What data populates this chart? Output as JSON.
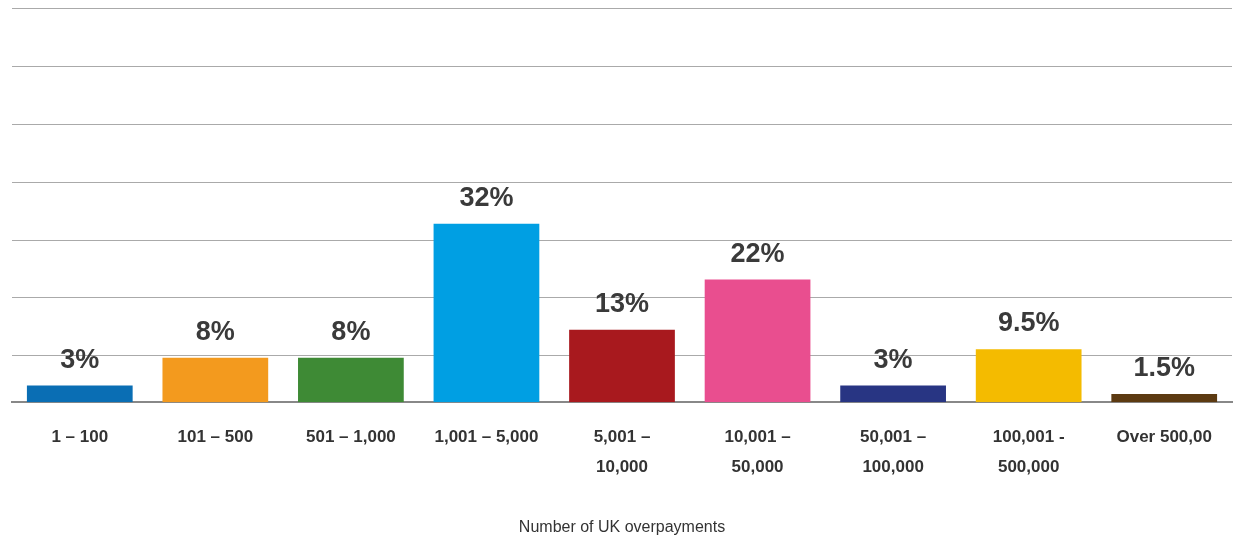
{
  "chart_data": {
    "type": "bar",
    "xlabel": "Number of UK overpayments",
    "categories": [
      "1 – 100",
      "101 – 500",
      "501 – 1,000",
      "1,001 – 5,000",
      "5,001 –\n10,000",
      "10,001 –\n50,000",
      "50,001 –\n100,000",
      "100,001 -\n500,000",
      "Over 500,00"
    ],
    "values": [
      3,
      8,
      8,
      32,
      13,
      22,
      3,
      9.5,
      1.5
    ],
    "value_labels": [
      "3%",
      "8%",
      "8%",
      "32%",
      "13%",
      "22%",
      "3%",
      "9.5%",
      "1.5%"
    ],
    "colors": [
      "#0a6eb4",
      "#f39a1e",
      "#3e8a35",
      "#009fe3",
      "#a8191e",
      "#e94e8f",
      "#283583",
      "#f4bb00",
      "#5c3a11"
    ],
    "ylim": [
      0,
      70.7
    ],
    "yticks": [
      {
        "value": 8.4,
        "label": null
      },
      {
        "value": 18.8,
        "label": null
      },
      {
        "value": 29.1,
        "label": null
      },
      {
        "value": 39.5,
        "label": null
      },
      {
        "value": 49.8,
        "label": null
      },
      {
        "value": 60.2,
        "label": null
      },
      {
        "value": 70.6,
        "label": null
      }
    ],
    "grid": "y",
    "tick_labels": "x",
    "legend": false
  }
}
